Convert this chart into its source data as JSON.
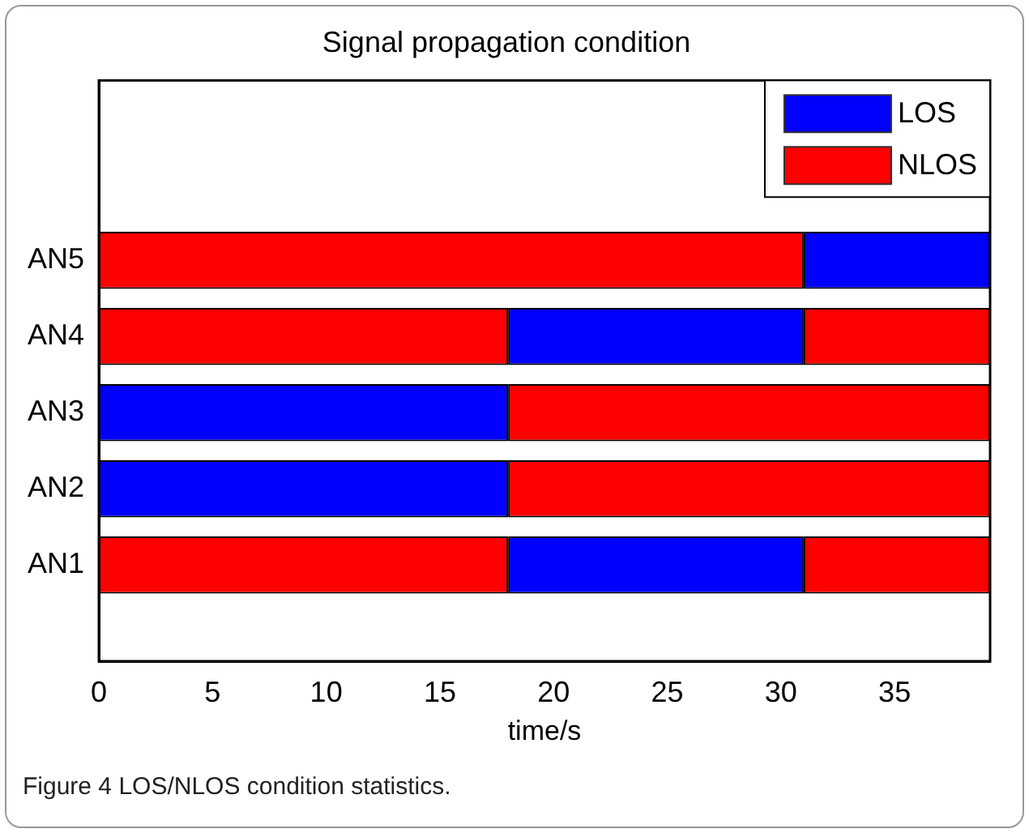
{
  "chart_data": {
    "type": "bar",
    "orientation": "horizontal",
    "stacked": true,
    "title": "Signal propagation condition",
    "xlabel": "time/s",
    "categories": [
      "AN5",
      "AN4",
      "AN3",
      "AN2",
      "AN1"
    ],
    "series": [
      {
        "name": "NLOS",
        "color": "#ff0000",
        "values": [
          31,
          18,
          null,
          null,
          18
        ]
      },
      {
        "name": "LOS",
        "color": "#0000ff",
        "values": [
          8.2,
          13,
          18,
          18,
          13
        ]
      },
      {
        "color": "#ff0000",
        "values": [
          null,
          8.2,
          21.2,
          21.2,
          8.2
        ]
      }
    ],
    "xlim": [
      0,
      39.2
    ],
    "xticks": [
      0,
      5,
      10,
      15,
      20,
      25,
      30,
      35
    ],
    "grid": false,
    "legend": "top right",
    "annotations": [
      "Figure 4 LOS/NLOS condition statistics."
    ]
  }
}
